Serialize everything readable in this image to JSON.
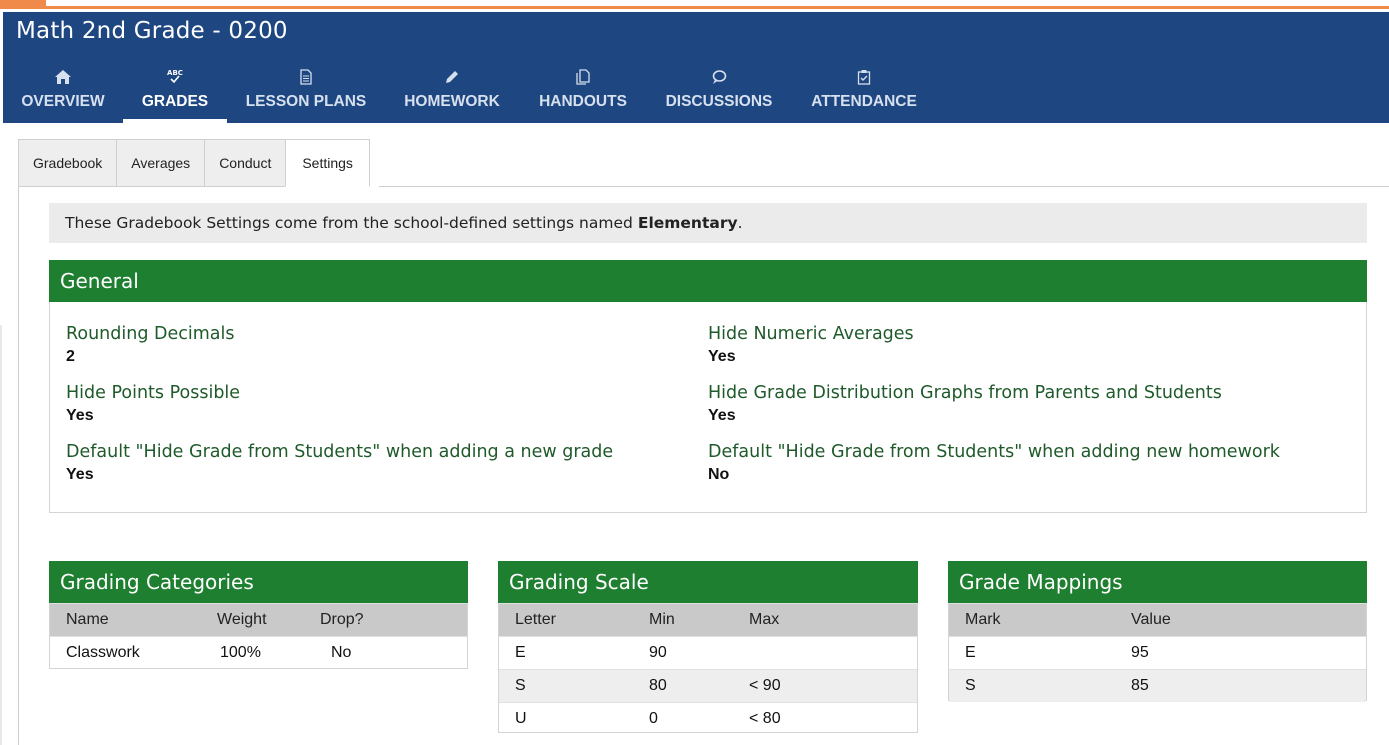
{
  "course": {
    "title": "Math 2nd Grade - 0200"
  },
  "nav": [
    {
      "label": "OVERVIEW",
      "icon": "home-icon",
      "active": false
    },
    {
      "label": "GRADES",
      "icon": "abc-check-icon",
      "active": true
    },
    {
      "label": "LESSON PLANS",
      "icon": "document-icon",
      "active": false
    },
    {
      "label": "HOMEWORK",
      "icon": "pencil-icon",
      "active": false
    },
    {
      "label": "HANDOUTS",
      "icon": "copy-icon",
      "active": false
    },
    {
      "label": "DISCUSSIONS",
      "icon": "speech-bubble-icon",
      "active": false
    },
    {
      "label": "ATTENDANCE",
      "icon": "clipboard-check-icon",
      "active": false
    }
  ],
  "subtabs": [
    {
      "label": "Gradebook",
      "active": false
    },
    {
      "label": "Averages",
      "active": false
    },
    {
      "label": "Conduct",
      "active": false
    },
    {
      "label": "Settings",
      "active": true
    }
  ],
  "notice": {
    "text": "These Gradebook Settings come from the school-defined settings named",
    "name": "Elementary",
    "suffix": "."
  },
  "general": {
    "title": "General",
    "items": [
      {
        "label": "Rounding Decimals",
        "value": "2"
      },
      {
        "label": "Hide Numeric Averages",
        "value": "Yes"
      },
      {
        "label": "Hide Points Possible",
        "value": "Yes"
      },
      {
        "label": "Hide Grade Distribution Graphs from Parents and Students",
        "value": "Yes"
      },
      {
        "label": "Default \"Hide Grade from Students\" when adding a new grade",
        "value": "Yes"
      },
      {
        "label": "Default \"Hide Grade from Students\" when adding new homework",
        "value": "No"
      }
    ]
  },
  "grading_categories": {
    "title": "Grading Categories",
    "headers": [
      "Name",
      "Weight",
      "Drop?"
    ],
    "rows": [
      [
        "Classwork",
        "100%",
        "No"
      ]
    ]
  },
  "grading_scale": {
    "title": "Grading Scale",
    "headers": [
      "Letter",
      "Min",
      "Max"
    ],
    "rows": [
      [
        "E",
        "90",
        ""
      ],
      [
        "S",
        "80",
        "< 90"
      ],
      [
        "U",
        "0",
        "< 80"
      ]
    ]
  },
  "grade_mappings": {
    "title": "Grade Mappings",
    "headers": [
      "Mark",
      "Value"
    ],
    "rows": [
      [
        "E",
        "95"
      ],
      [
        "S",
        "85"
      ]
    ]
  },
  "colors": {
    "header_blue": "#1e4680",
    "section_green": "#1f7f30",
    "label_green": "#1f5a2a",
    "accent_orange": "#f08a4b"
  }
}
